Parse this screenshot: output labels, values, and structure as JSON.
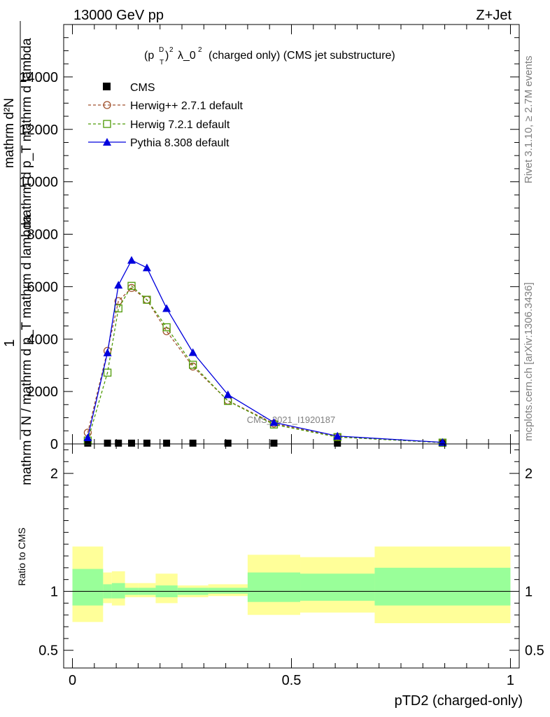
{
  "header": {
    "energy_label": "13000 GeV pp",
    "process_label": "Z+Jet",
    "observable_title": "(p_T^D)^2 λ_0^2 (charged only) (CMS jet substructure)",
    "watermark": "CMS_2021_I1920187",
    "rivet_label": "Rivet 3.1.10, ≥ 2.7M events",
    "mcplots_label": "mcplots.cern.ch [arXiv:1306.3436]"
  },
  "colors": {
    "cms": "#000000",
    "herwigpp": "#a0522d",
    "herwig7": "#4e9a06",
    "pythia": "#0000dd",
    "band_inner": "#99ff99",
    "band_outer": "#ffff99"
  },
  "chart_data": [
    {
      "type": "line",
      "panel": "main",
      "ylabel": "1/N dN/dp_T d... (mathrm d N / mathrm d p_T mathrm d lambda)",
      "ylabel_parts": [
        "1",
        "mathrm d N / mathrm d p_T mathrm d lambda",
        "mathrm d²N",
        "mathrm d p_T mathrm d lambda"
      ],
      "xlim": [
        -0.02,
        1.02
      ],
      "ylim": [
        0,
        16000
      ],
      "yticks": [
        0,
        2000,
        4000,
        6000,
        8000,
        10000,
        12000,
        14000
      ],
      "ytick_labels": [
        "0",
        "2000",
        "4000",
        "6000",
        "8000",
        "10000",
        "12000",
        "14000"
      ],
      "legend_position": "top-left",
      "series": [
        {
          "name": "CMS",
          "marker": "square-filled",
          "x": [
            0.035,
            0.08,
            0.105,
            0.135,
            0.17,
            0.215,
            0.275,
            0.355,
            0.46,
            0.605,
            0.845
          ],
          "y": [
            30,
            30,
            30,
            30,
            30,
            30,
            30,
            30,
            30,
            30,
            30
          ]
        },
        {
          "name": "Herwig++ 2.7.1 default",
          "marker": "circle-open",
          "x": [
            0.035,
            0.08,
            0.105,
            0.135,
            0.17,
            0.215,
            0.275,
            0.355,
            0.46,
            0.605,
            0.845
          ],
          "y": [
            430,
            3550,
            5450,
            5950,
            5500,
            4300,
            2950,
            1650,
            780,
            270,
            50
          ]
        },
        {
          "name": "Herwig 7.2.1 default",
          "marker": "square-open",
          "x": [
            0.035,
            0.08,
            0.105,
            0.135,
            0.17,
            0.215,
            0.275,
            0.355,
            0.46,
            0.605,
            0.845
          ],
          "y": [
            130,
            2720,
            5170,
            6030,
            5500,
            4450,
            3020,
            1640,
            740,
            260,
            50
          ]
        },
        {
          "name": "Pythia 8.308 default",
          "marker": "triangle-filled",
          "x": [
            0.035,
            0.08,
            0.105,
            0.135,
            0.17,
            0.215,
            0.275,
            0.355,
            0.46,
            0.605,
            0.845
          ],
          "y": [
            240,
            3480,
            6060,
            7010,
            6720,
            5170,
            3490,
            1880,
            820,
            300,
            60
          ]
        }
      ]
    },
    {
      "type": "area",
      "panel": "ratio",
      "xlabel": "pTD2 (charged-only)",
      "ylabel": "Ratio to CMS",
      "xlim": [
        -0.02,
        1.02
      ],
      "ylim": [
        0.35,
        2.25
      ],
      "yticks": [
        0.5,
        1,
        2
      ],
      "ytick_labels": [
        "0.5",
        "1",
        "2"
      ],
      "xticks": [
        0,
        0.5,
        1
      ],
      "xtick_labels": [
        "0",
        "0.5",
        "1"
      ],
      "reference": 1,
      "bins": [
        {
          "lo": 0.0,
          "hi": 0.07,
          "outer": [
            0.74,
            1.38
          ],
          "inner": [
            0.88,
            1.19
          ]
        },
        {
          "lo": 0.07,
          "hi": 0.09,
          "outer": [
            0.9,
            1.16
          ],
          "inner": [
            0.94,
            1.06
          ]
        },
        {
          "lo": 0.09,
          "hi": 0.12,
          "outer": [
            0.88,
            1.17
          ],
          "inner": [
            0.94,
            1.07
          ]
        },
        {
          "lo": 0.12,
          "hi": 0.15,
          "outer": [
            0.95,
            1.07
          ],
          "inner": [
            0.97,
            1.03
          ]
        },
        {
          "lo": 0.15,
          "hi": 0.19,
          "outer": [
            0.95,
            1.07
          ],
          "inner": [
            0.97,
            1.03
          ]
        },
        {
          "lo": 0.19,
          "hi": 0.24,
          "outer": [
            0.9,
            1.15
          ],
          "inner": [
            0.95,
            1.05
          ]
        },
        {
          "lo": 0.24,
          "hi": 0.31,
          "outer": [
            0.95,
            1.05
          ],
          "inner": [
            0.97,
            1.03
          ]
        },
        {
          "lo": 0.31,
          "hi": 0.4,
          "outer": [
            0.96,
            1.06
          ],
          "inner": [
            0.98,
            1.03
          ]
        },
        {
          "lo": 0.4,
          "hi": 0.52,
          "outer": [
            0.8,
            1.31
          ],
          "inner": [
            0.91,
            1.16
          ]
        },
        {
          "lo": 0.52,
          "hi": 0.69,
          "outer": [
            0.82,
            1.29
          ],
          "inner": [
            0.92,
            1.15
          ]
        },
        {
          "lo": 0.69,
          "hi": 1.0,
          "outer": [
            0.73,
            1.38
          ],
          "inner": [
            0.88,
            1.2
          ]
        }
      ]
    }
  ]
}
